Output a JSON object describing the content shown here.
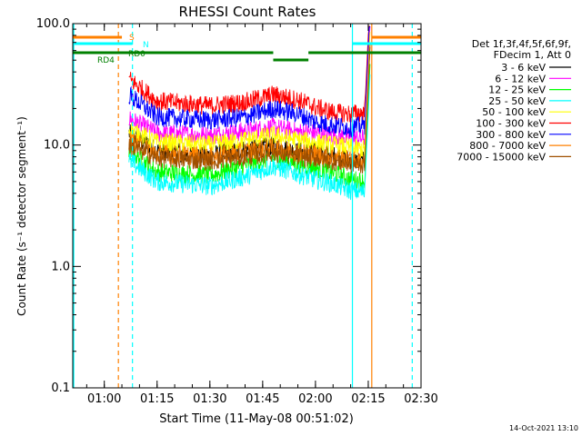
{
  "chart_data": {
    "type": "line",
    "title": "RHESSI Count Rates",
    "xlabel": "Start Time (11-May-08 00:51:02)",
    "ylabel": "Count Rate (s⁻¹ detector segment⁻¹)",
    "y_scale": "log",
    "ylim": [
      0.1,
      100
    ],
    "xlim": [
      "00:51:02",
      "02:30:00"
    ],
    "x_ticks": [
      "01:00",
      "01:15",
      "01:30",
      "01:45",
      "02:00",
      "02:15",
      "02:30"
    ],
    "y_ticks": [
      "0.1",
      "1.0",
      "10.0",
      "100.0"
    ],
    "legend_header": [
      "Det 1f,3f,4f,5f,6f,9f,",
      "FDecim 1, Att 0"
    ],
    "legend_position": "right",
    "footer_date": "14-Oct-2021 13:10",
    "x": [
      "01:07",
      "01:15",
      "01:30",
      "01:40",
      "01:48",
      "01:55",
      "02:00",
      "02:05",
      "02:10",
      "02:14"
    ],
    "series": [
      {
        "name": "3 - 6 keV",
        "color": "#000000",
        "values": [
          12.5,
          9.0,
          8.2,
          9.2,
          9.8,
          8.8,
          8.8,
          8.2,
          7.5,
          7.3
        ]
      },
      {
        "name": "6 - 12 keV",
        "color": "#ff00ff",
        "values": [
          16.5,
          12.5,
          12.0,
          13.0,
          14.0,
          12.8,
          12.6,
          12.0,
          11.5,
          11.3
        ]
      },
      {
        "name": "12 - 25 keV",
        "color": "#00ff00",
        "values": [
          9.0,
          6.0,
          5.6,
          6.8,
          8.0,
          7.0,
          6.5,
          5.9,
          5.2,
          5.0
        ]
      },
      {
        "name": "25 - 50 keV",
        "color": "#00ffff",
        "values": [
          7.5,
          5.0,
          4.6,
          5.5,
          6.7,
          5.8,
          5.2,
          4.8,
          4.2,
          4.1
        ]
      },
      {
        "name": "50 - 100 keV",
        "color": "#ffff00",
        "values": [
          13.5,
          10.5,
          10.0,
          11.0,
          12.0,
          11.0,
          10.5,
          10.0,
          9.5,
          9.2
        ]
      },
      {
        "name": "100 - 300 keV",
        "color": "#ff0000",
        "values": [
          35.0,
          23.0,
          21.0,
          22.5,
          26.0,
          23.5,
          20.5,
          18.5,
          18.0,
          18.5
        ]
      },
      {
        "name": "300 - 800 keV",
        "color": "#0000ff",
        "values": [
          26.0,
          17.0,
          16.0,
          17.0,
          20.0,
          18.0,
          15.5,
          14.5,
          14.0,
          14.5
        ]
      },
      {
        "name": "800 - 7000 keV",
        "color": "#ff8000",
        "values": [
          11.0,
          8.5,
          8.0,
          8.8,
          9.5,
          8.7,
          8.4,
          8.0,
          7.5,
          7.3
        ]
      },
      {
        "name": "7000 - 15000 keV",
        "color": "#a05000",
        "values": [
          10.0,
          7.8,
          7.4,
          8.0,
          8.7,
          8.0,
          7.8,
          7.4,
          7.0,
          6.9
        ]
      }
    ],
    "annotations": [
      {
        "text": "S",
        "color": "#ff8000"
      },
      {
        "text": "N",
        "color": "#00ffff"
      },
      {
        "text": "RD4",
        "color": "#008000"
      },
      {
        "text": "RD0",
        "color": "#008000"
      }
    ]
  }
}
